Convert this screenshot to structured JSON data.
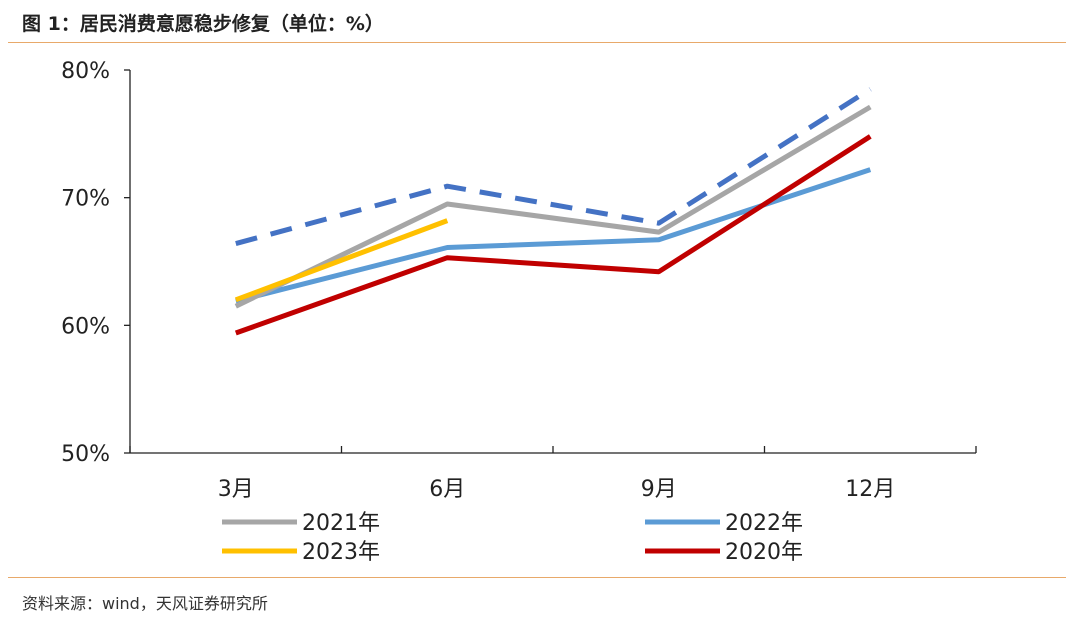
{
  "header": {
    "title": "图 1：居民消费意愿稳步修复（单位：%）"
  },
  "footer": {
    "source": "资料来源：wind，天风证券研究所"
  },
  "colors": {
    "rule": "#e8a96a",
    "axis": "#222222"
  },
  "chart_data": {
    "type": "line",
    "title": "图 1：居民消费意愿稳步修复（单位：%）",
    "categories": [
      "3月",
      "6月",
      "9月",
      "12月"
    ],
    "y_ticks": [
      "50%",
      "60%",
      "70%",
      "80%"
    ],
    "ylim": [
      50,
      80
    ],
    "grid": false,
    "legend_position": "bottom",
    "series": [
      {
        "name": "2021年",
        "color": "#a6a6a6",
        "dashed": false,
        "values": [
          61.5,
          69.5,
          67.3,
          77.1
        ]
      },
      {
        "name": "2022年",
        "color": "#5b9bd5",
        "dashed": false,
        "values": [
          61.9,
          66.1,
          66.7,
          72.2
        ]
      },
      {
        "name": "2023年",
        "color": "#ffc000",
        "dashed": false,
        "values": [
          62.0,
          68.2,
          null,
          null
        ]
      },
      {
        "name": "2020年",
        "color": "#c00000",
        "dashed": false,
        "values": [
          59.4,
          65.3,
          64.2,
          74.8
        ]
      },
      {
        "name": "",
        "color": "#4472c4",
        "dashed": true,
        "values": [
          66.4,
          70.9,
          68.0,
          78.5
        ]
      }
    ],
    "legend": [
      {
        "series": 0
      },
      {
        "series": 1
      },
      {
        "series": 2
      },
      {
        "series": 3
      }
    ]
  }
}
